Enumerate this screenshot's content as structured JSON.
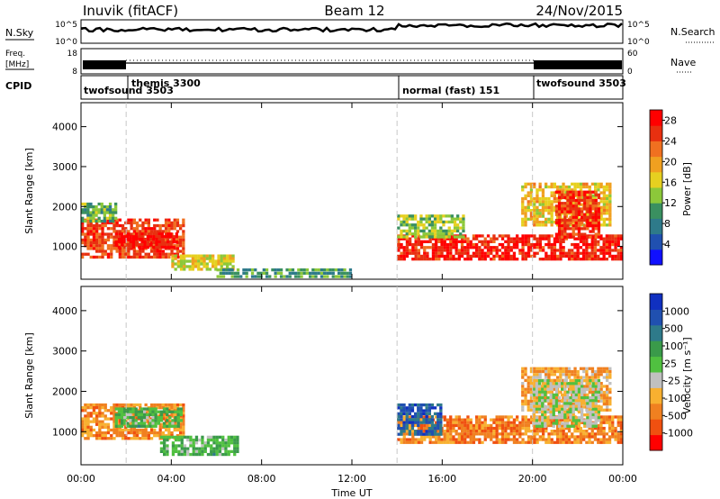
{
  "header": {
    "station": "Inuvik (fitACF)",
    "beam": "Beam 12",
    "date": "24/Nov/2015"
  },
  "nsky_panel": {
    "left_label": "N.Sky",
    "left_ticks": [
      "10^5",
      "10^0"
    ],
    "right_label": "N.Search",
    "right_ticks": [
      "10^5",
      "10^0"
    ]
  },
  "freq_panel": {
    "left_label_1": "Freq.",
    "left_label_2": "[MHz]",
    "left_ticks": [
      "18",
      "8"
    ],
    "right_label": "Nave",
    "right_ticks": [
      "60",
      "0"
    ]
  },
  "cpid": {
    "label": "CPID",
    "segments": [
      {
        "name": "twofsound 3503",
        "start": 0.0,
        "end": 2.0
      },
      {
        "name": "themis 3300",
        "start": 2.0,
        "end": 14.0
      },
      {
        "name": "normal (fast) 151",
        "start": 14.0,
        "end": 20.0
      },
      {
        "name": "twofsound 3503",
        "start": 20.0,
        "end": 24.0
      }
    ]
  },
  "colors": {
    "power": [
      "#1010ff",
      "#2050b0",
      "#2e7a8a",
      "#3a9060",
      "#8cc83a",
      "#e6d020",
      "#f0a020",
      "#f07020",
      "#e83010",
      "#ff0000"
    ],
    "velocity": [
      "#ff0000",
      "#f05010",
      "#f08020",
      "#f8b030",
      "#c0c0c0",
      "#50c040",
      "#3a9a4a",
      "#2e7a8a",
      "#2050b0",
      "#1030c0"
    ]
  },
  "chart_data": [
    {
      "type": "heatmap",
      "name": "power",
      "ylabel": "Slant Range [km]",
      "xlabel": "Time UT",
      "x_ticks": [
        "00:00",
        "04:00",
        "08:00",
        "12:00",
        "16:00",
        "20:00",
        "00:00"
      ],
      "x_range": [
        0,
        24
      ],
      "y_range": [
        180,
        4600
      ],
      "y_ticks": [
        1000,
        2000,
        3000,
        4000
      ],
      "colorbar": {
        "label": "Power [dB]",
        "ticks": [
          4,
          8,
          12,
          16,
          20,
          24,
          28
        ],
        "range": [
          0,
          30
        ]
      },
      "mode_change_markers": [
        2.0,
        14.0,
        20.0
      ],
      "patches": [
        {
          "t0": 0.0,
          "t1": 4.6,
          "r0": 700,
          "r1": 1700,
          "value": 26
        },
        {
          "t0": 1.5,
          "t1": 4.3,
          "r0": 950,
          "r1": 1350,
          "value": 29
        },
        {
          "t0": 0.0,
          "t1": 1.6,
          "r0": 1600,
          "r1": 2100,
          "value": 12
        },
        {
          "t0": 4.0,
          "t1": 6.8,
          "r0": 400,
          "r1": 800,
          "value": 16
        },
        {
          "t0": 6.0,
          "t1": 12.0,
          "r0": 200,
          "r1": 450,
          "value": 10
        },
        {
          "t0": 14.0,
          "t1": 24.0,
          "r0": 650,
          "r1": 1300,
          "value": 28
        },
        {
          "t0": 14.0,
          "t1": 17.0,
          "r0": 1200,
          "r1": 1800,
          "value": 14
        },
        {
          "t0": 19.5,
          "t1": 23.5,
          "r0": 1500,
          "r1": 2600,
          "value": 18
        },
        {
          "t0": 21.0,
          "t1": 23.0,
          "r0": 1200,
          "r1": 2400,
          "value": 27
        }
      ]
    },
    {
      "type": "heatmap",
      "name": "velocity",
      "ylabel": "Slant Range [km]",
      "xlabel": "Time UT",
      "x_ticks": [
        "00:00",
        "04:00",
        "08:00",
        "12:00",
        "16:00",
        "20:00",
        "00:00"
      ],
      "x_range": [
        0,
        24
      ],
      "y_range": [
        180,
        4600
      ],
      "y_ticks": [
        1000,
        2000,
        3000,
        4000
      ],
      "colorbar": {
        "label": "Velocity [m s⁻¹]",
        "ticks": [
          "-1000",
          "-500",
          "-100",
          "-25",
          "25",
          "100",
          "500",
          "1000"
        ]
      },
      "mode_change_markers": [
        2.0,
        14.0,
        20.0
      ],
      "patches": [
        {
          "t0": 0.0,
          "t1": 4.6,
          "r0": 800,
          "r1": 1700,
          "value": 0.25
        },
        {
          "t0": 1.5,
          "t1": 4.5,
          "r0": 1100,
          "r1": 1600,
          "value": 0.6
        },
        {
          "t0": 3.5,
          "t1": 7.0,
          "r0": 400,
          "r1": 900,
          "value": 0.6
        },
        {
          "t0": 14.0,
          "t1": 24.0,
          "r0": 700,
          "r1": 1400,
          "value": 0.22
        },
        {
          "t0": 14.0,
          "t1": 16.0,
          "r0": 900,
          "r1": 1700,
          "value": 0.85
        },
        {
          "t0": 19.5,
          "t1": 23.5,
          "r0": 1500,
          "r1": 2600,
          "value": 0.3
        },
        {
          "t0": 20.0,
          "t1": 23.0,
          "r0": 1100,
          "r1": 2300,
          "value": 0.45
        }
      ]
    }
  ]
}
